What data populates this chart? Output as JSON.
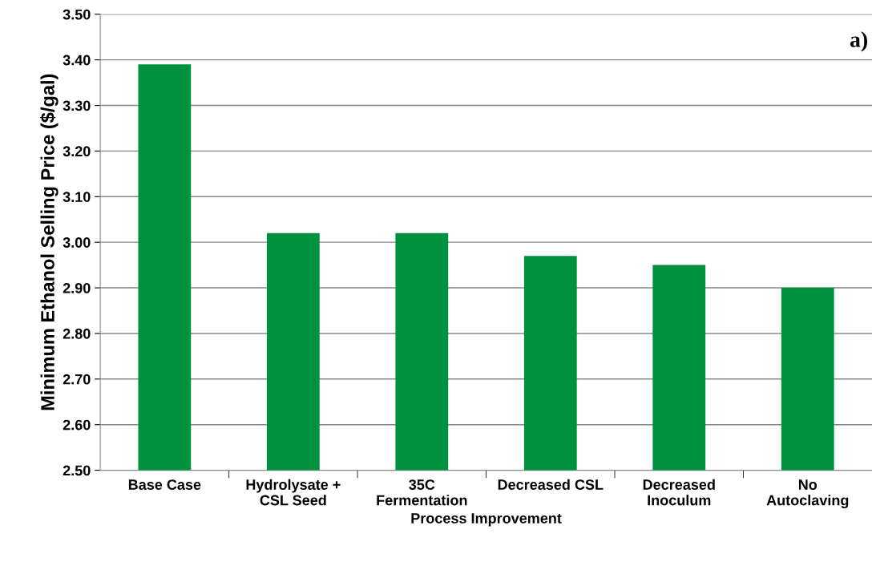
{
  "chart_data": {
    "type": "bar",
    "xlabel": "Process Improvement",
    "ylabel": "Minimum Ethanol Selling Price ($/gal)",
    "categories": [
      "Base Case",
      "Hydrolysate +\nCSL Seed",
      "35C\nFermentation",
      "Decreased CSL",
      "Decreased\nInoculum",
      "No\nAutoclaving"
    ],
    "values": [
      3.39,
      3.02,
      3.02,
      2.97,
      2.95,
      2.9
    ],
    "color": "#00913f",
    "ylim": [
      2.5,
      3.5
    ],
    "yticks": [
      {
        "value": 2.5,
        "label": "2.50"
      },
      {
        "value": 2.6,
        "label": "2.60"
      },
      {
        "value": 2.7,
        "label": "2.70"
      },
      {
        "value": 2.8,
        "label": "2.80"
      },
      {
        "value": 2.9,
        "label": "2.90"
      },
      {
        "value": 3.0,
        "label": "3.00"
      },
      {
        "value": 3.1,
        "label": "3.10"
      },
      {
        "value": 3.2,
        "label": "3.20"
      },
      {
        "value": 3.3,
        "label": "3.30"
      },
      {
        "value": 3.4,
        "label": "3.40"
      },
      {
        "value": 3.5,
        "label": "3.50"
      }
    ],
    "grid": "y",
    "annotations": [
      "a)"
    ]
  }
}
